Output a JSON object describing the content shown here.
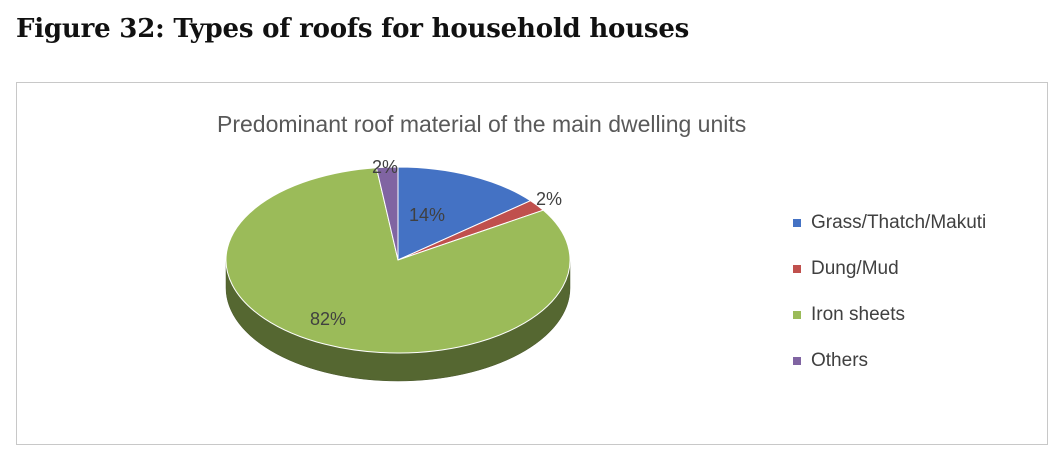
{
  "figure_title": "Figure 32: Types of roofs for household houses",
  "chart_data": {
    "type": "pie",
    "title": "Predominant roof material of the main dwelling units",
    "categories": [
      "Grass/Thatch/Makuti",
      "Dung/Mud",
      "Iron sheets",
      "Others"
    ],
    "values": [
      14,
      2,
      82,
      2
    ],
    "labels": [
      "14%",
      "2%",
      "82%",
      "2%"
    ],
    "colors": [
      "#4472C4",
      "#C0504D",
      "#9BBB59",
      "#8064A2"
    ],
    "legend_position": "right",
    "style": "3d"
  }
}
